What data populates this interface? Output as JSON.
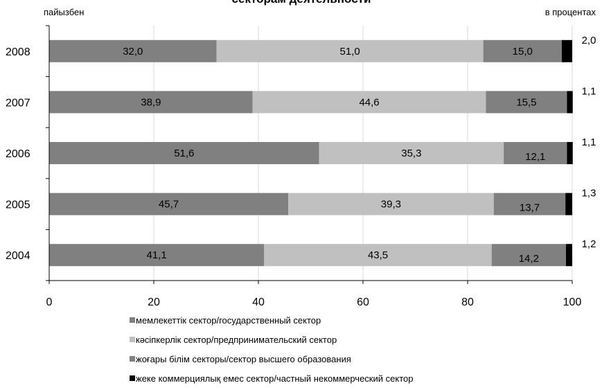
{
  "chart_data": {
    "type": "bar",
    "orientation": "horizontal",
    "stacked": true,
    "title": "секторам деятельности",
    "unit_left": "пайызбен",
    "unit_right": "в процентах",
    "categories": [
      "2008",
      "2007",
      "2006",
      "2005",
      "2004"
    ],
    "series": [
      {
        "name": "мемлекеттік сектор/государственный сектор",
        "color": "#808080",
        "values": [
          32.0,
          38.9,
          51.6,
          45.7,
          41.1
        ],
        "labels": [
          "32,0",
          "38,9",
          "51,6",
          "45,7",
          "41,1"
        ]
      },
      {
        "name": "кәсіпкерлік сектор/предпринимательский сектор",
        "color": "#c0c0c0",
        "values": [
          51.0,
          44.6,
          35.3,
          39.3,
          43.5
        ],
        "labels": [
          "51,0",
          "44,6",
          "35,3",
          "39,3",
          "43,5"
        ]
      },
      {
        "name": "жоғары білім секторы/сектор высшего образования",
        "color": "#808080",
        "values": [
          15.0,
          15.5,
          12.1,
          13.7,
          14.2
        ],
        "labels": [
          "15,0",
          "15,5",
          "12,1",
          "13,7",
          "14,2"
        ]
      },
      {
        "name": "жеке коммерциялық емес сектор/частный некоммерческий сектор",
        "color": "#000000",
        "values": [
          2.0,
          1.1,
          1.1,
          1.3,
          1.2
        ],
        "labels": [
          "2,0",
          "1,1",
          "1,1",
          "1,3",
          "1,2"
        ]
      }
    ],
    "xlim": [
      0,
      100
    ],
    "xticks": [
      0,
      20,
      40,
      60,
      80,
      100
    ],
    "xtick_labels": [
      "0",
      "20",
      "40",
      "60",
      "80",
      "100"
    ],
    "grid": "vertical",
    "legend_position": "bottom"
  }
}
